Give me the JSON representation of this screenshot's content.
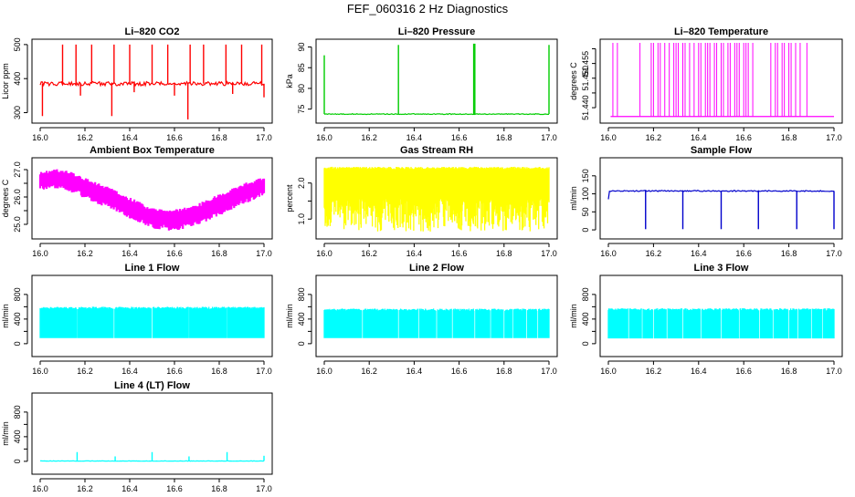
{
  "page_title": "FEF_060316  2 Hz Diagnostics",
  "chart_data": [
    {
      "type": "line",
      "title": "Li–820 CO2",
      "ylabel": "Licor ppm",
      "xlim": [
        16.0,
        17.0
      ],
      "ylim": [
        280,
        505
      ],
      "x_ticks": [
        "16.0",
        "16.2",
        "16.4",
        "16.6",
        "16.8",
        "17.0"
      ],
      "y_ticks": [
        300,
        400,
        500
      ],
      "color": "#ff0000",
      "baseline": 385,
      "noise": 6,
      "spikes_up": [
        {
          "x": 16.1,
          "y": 500
        },
        {
          "x": 16.16,
          "y": 500
        },
        {
          "x": 16.23,
          "y": 500
        },
        {
          "x": 16.33,
          "y": 500
        },
        {
          "x": 16.4,
          "y": 500
        },
        {
          "x": 16.5,
          "y": 500
        },
        {
          "x": 16.57,
          "y": 500
        },
        {
          "x": 16.67,
          "y": 500
        },
        {
          "x": 16.73,
          "y": 500
        },
        {
          "x": 16.83,
          "y": 500
        },
        {
          "x": 16.9,
          "y": 500
        },
        {
          "x": 16.99,
          "y": 500
        }
      ],
      "spikes_down": [
        {
          "x": 16.01,
          "y": 290
        },
        {
          "x": 16.18,
          "y": 350
        },
        {
          "x": 16.32,
          "y": 290
        },
        {
          "x": 16.42,
          "y": 360
        },
        {
          "x": 16.6,
          "y": 350
        },
        {
          "x": 16.66,
          "y": 280
        },
        {
          "x": 16.86,
          "y": 355
        },
        {
          "x": 17.0,
          "y": 345
        }
      ]
    },
    {
      "type": "line",
      "title": "Li–820 Pressure",
      "ylabel": "kPa",
      "xlim": [
        16.0,
        17.0
      ],
      "ylim": [
        72.5,
        91
      ],
      "x_ticks": [
        "16.0",
        "16.2",
        "16.4",
        "16.6",
        "16.8",
        "17.0"
      ],
      "y_ticks": [
        75,
        80,
        85,
        90
      ],
      "color": "#00cc00",
      "baseline": 73.8,
      "noise": 0.1,
      "spikes_up": [
        {
          "x": 16.0,
          "y": 88
        },
        {
          "x": 16.33,
          "y": 90.5
        },
        {
          "x": 16.665,
          "y": 90.8
        },
        {
          "x": 16.67,
          "y": 90.8
        },
        {
          "x": 17.0,
          "y": 90.5
        }
      ],
      "spikes_down": []
    },
    {
      "type": "line",
      "title": "Li–820 Temperature",
      "ylabel": "degrees C",
      "xlim": [
        16.0,
        17.0
      ],
      "ylim": [
        51.436,
        51.462
      ],
      "x_ticks": [
        "16.0",
        "16.2",
        "16.4",
        "16.6",
        "16.8",
        "17.0"
      ],
      "y_ticks": [
        51.44,
        51.445,
        51.45,
        51.455,
        51.46
      ],
      "y_tick_labels": [
        "51.440",
        "",
        "51.450",
        "51.455",
        ""
      ],
      "color": "#ff00ff",
      "baseline": 51.437,
      "high": 51.462,
      "pulses": [
        0.02,
        0.04,
        0.14,
        0.19,
        0.2,
        0.22,
        0.23,
        0.25,
        0.27,
        0.29,
        0.3,
        0.31,
        0.33,
        0.34,
        0.36,
        0.38,
        0.4,
        0.41,
        0.43,
        0.44,
        0.45,
        0.47,
        0.48,
        0.5,
        0.51,
        0.53,
        0.54,
        0.56,
        0.57,
        0.58,
        0.6,
        0.61,
        0.62,
        0.64,
        0.72,
        0.74,
        0.75,
        0.77,
        0.78,
        0.8,
        0.81,
        0.83,
        0.85,
        0.88
      ]
    },
    {
      "type": "line",
      "title": "Ambient Box Temperature",
      "ylabel": "degrees C",
      "xlim": [
        16.0,
        17.0
      ],
      "ylim": [
        24.6,
        27.3
      ],
      "x_ticks": [
        "16.0",
        "16.2",
        "16.4",
        "16.6",
        "16.8",
        "17.0"
      ],
      "y_ticks": [
        25.0,
        25.5,
        26.0,
        26.5,
        27.0
      ],
      "y_tick_labels": [
        "25.0",
        "",
        "26.0",
        "",
        "27.0"
      ],
      "color": "#ff00ff",
      "band_hi": [
        [
          16.0,
          26.95
        ],
        [
          16.1,
          27.05
        ],
        [
          16.2,
          26.7
        ],
        [
          16.3,
          26.4
        ],
        [
          16.4,
          26.0
        ],
        [
          16.5,
          25.6
        ],
        [
          16.6,
          25.55
        ],
        [
          16.7,
          25.75
        ],
        [
          16.8,
          26.1
        ],
        [
          16.9,
          26.5
        ],
        [
          17.0,
          26.75
        ]
      ],
      "band_lo": [
        [
          16.0,
          26.25
        ],
        [
          16.1,
          26.3
        ],
        [
          16.2,
          25.95
        ],
        [
          16.3,
          25.6
        ],
        [
          16.4,
          25.2
        ],
        [
          16.5,
          24.85
        ],
        [
          16.6,
          24.75
        ],
        [
          16.7,
          24.95
        ],
        [
          16.8,
          25.3
        ],
        [
          16.9,
          25.7
        ],
        [
          17.0,
          26.05
        ]
      ]
    },
    {
      "type": "line",
      "title": "Gas Stream RH",
      "ylabel": "percent",
      "xlim": [
        16.0,
        17.0
      ],
      "ylim": [
        0.55,
        2.6
      ],
      "x_ticks": [
        "16.0",
        "16.2",
        "16.4",
        "16.6",
        "16.8",
        "17.0"
      ],
      "y_ticks": [
        1.0,
        1.5,
        2.0
      ],
      "y_tick_labels": [
        "1.0",
        "",
        "2.0"
      ],
      "color": "#ffff00",
      "band_top": 2.45,
      "band_bottom": 1.55,
      "min_value": 0.65
    },
    {
      "type": "line",
      "title": "Sample Flow",
      "ylabel": "ml/min",
      "xlim": [
        16.0,
        17.0
      ],
      "ylim": [
        -15,
        190
      ],
      "x_ticks": [
        "16.0",
        "16.2",
        "16.4",
        "16.6",
        "16.8",
        "17.0"
      ],
      "y_ticks": [
        0,
        50,
        100,
        150
      ],
      "color": "#0000cc",
      "baseline": 108,
      "noise": 1.5,
      "spikes_up": [],
      "spikes_down": [
        {
          "x": 16.165,
          "y": 2
        },
        {
          "x": 16.33,
          "y": 2
        },
        {
          "x": 16.5,
          "y": 2
        },
        {
          "x": 16.665,
          "y": 2
        },
        {
          "x": 16.835,
          "y": 2
        },
        {
          "x": 17.0,
          "y": 2
        }
      ],
      "start_value": 85
    },
    {
      "type": "line",
      "title": "Line 1 Flow",
      "ylabel": "ml/min",
      "xlim": [
        16.0,
        17.0
      ],
      "ylim": [
        -150,
        1050
      ],
      "x_ticks": [
        "16.0",
        "16.2",
        "16.4",
        "16.6",
        "16.8",
        "17.0"
      ],
      "y_ticks": [
        0,
        200,
        400,
        600,
        800
      ],
      "y_tick_labels": [
        "0",
        "",
        "400",
        "",
        "800"
      ],
      "color": "#00ffff",
      "band_top": 600,
      "band_bottom": 90,
      "gaps": [
        16.165,
        16.33,
        16.5,
        16.665,
        16.835
      ]
    },
    {
      "type": "line",
      "title": "Line 2 Flow",
      "ylabel": "ml/min",
      "xlim": [
        16.0,
        17.0
      ],
      "ylim": [
        -150,
        1050
      ],
      "x_ticks": [
        "16.0",
        "16.2",
        "16.4",
        "16.6",
        "16.8",
        "17.0"
      ],
      "y_ticks": [
        0,
        200,
        400,
        600,
        800
      ],
      "y_tick_labels": [
        "0",
        "",
        "400",
        "",
        "800"
      ],
      "color": "#00ffff",
      "band_top": 570,
      "band_bottom": 90,
      "gaps": [
        16.17,
        16.33,
        16.42,
        16.5,
        16.57,
        16.67,
        16.74,
        16.8,
        16.84,
        16.9,
        16.95
      ]
    },
    {
      "type": "line",
      "title": "Line 3 Flow",
      "ylabel": "ml/min",
      "xlim": [
        16.0,
        17.0
      ],
      "ylim": [
        -150,
        1050
      ],
      "x_ticks": [
        "16.0",
        "16.2",
        "16.4",
        "16.6",
        "16.8",
        "17.0"
      ],
      "y_ticks": [
        0,
        200,
        400,
        600,
        800
      ],
      "y_tick_labels": [
        "0",
        "",
        "400",
        "",
        "800"
      ],
      "color": "#00ffff",
      "band_top": 575,
      "band_bottom": 85,
      "gaps": [
        16.09,
        16.15,
        16.2,
        16.26,
        16.33,
        16.41,
        16.5,
        16.58,
        16.67,
        16.73,
        16.8,
        16.84,
        16.9,
        16.95
      ]
    },
    {
      "type": "line",
      "title": "Line 4 (LT) Flow",
      "ylabel": "ml/min",
      "xlim": [
        16.0,
        17.0
      ],
      "ylim": [
        -150,
        1050
      ],
      "x_ticks": [
        "16.0",
        "16.2",
        "16.4",
        "16.6",
        "16.8",
        "17.0"
      ],
      "y_ticks": [
        0,
        200,
        400,
        600,
        800
      ],
      "y_tick_labels": [
        "0",
        "",
        "400",
        "",
        "800"
      ],
      "color": "#00ffff",
      "baseline": 5,
      "noise": 3,
      "spikes_up": [
        {
          "x": 16.165,
          "y": 150
        },
        {
          "x": 16.335,
          "y": 80
        },
        {
          "x": 16.5,
          "y": 150
        },
        {
          "x": 16.665,
          "y": 80
        },
        {
          "x": 16.835,
          "y": 150
        },
        {
          "x": 17.0,
          "y": 90
        }
      ],
      "spikes_down": []
    }
  ]
}
